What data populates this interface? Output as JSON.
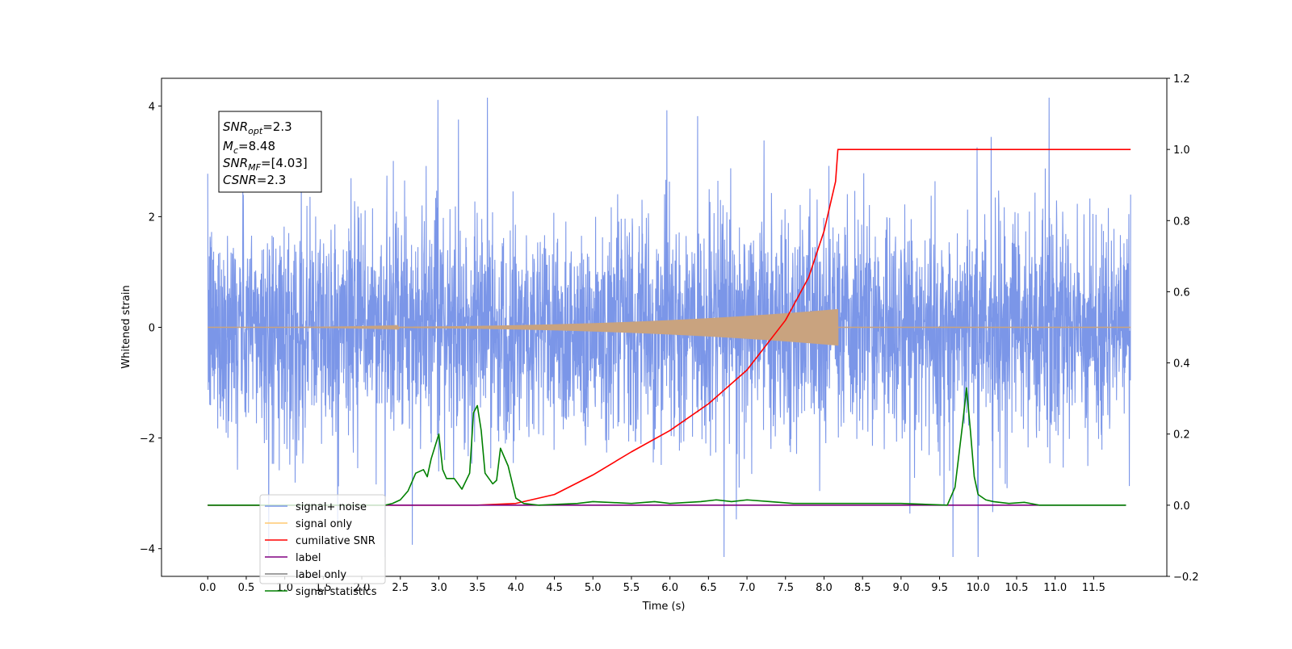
{
  "chart_data": {
    "type": "line",
    "xlabel": "Time (s)",
    "ylabel": "Whitened strain",
    "xlim": [
      -0.6,
      12.45
    ],
    "ylim_left": [
      -4.5,
      4.5
    ],
    "ylim_right": [
      -0.2,
      1.2
    ],
    "x_ticks": [
      "0.0",
      "0.5",
      "1.0",
      "1.5",
      "2.0",
      "2.5",
      "3.0",
      "3.5",
      "4.0",
      "4.5",
      "5.0",
      "5.5",
      "6.0",
      "6.5",
      "7.0",
      "7.5",
      "8.0",
      "8.5",
      "9.0",
      "9.5",
      "10.0",
      "10.5",
      "11.0",
      "11.5"
    ],
    "y_ticks_left": [
      "−4",
      "−2",
      "0",
      "2",
      "4"
    ],
    "y_ticks_right": [
      "−0.2",
      "0.0",
      "0.2",
      "0.4",
      "0.6",
      "0.8",
      "1.0",
      "1.2"
    ],
    "annotation": {
      "snr_opt": {
        "base": "SNR",
        "sub": "opt",
        "value": "=2.3"
      },
      "mc": {
        "base": "M",
        "sub": "c",
        "value": "=8.48"
      },
      "snr_mf": {
        "base": "SNR",
        "sub": "MF",
        "value": "=[4.03]"
      },
      "csnr": {
        "base": "CSNR",
        "sub": "",
        "value": "=2.3"
      }
    },
    "legend": {
      "placement": "lower-left",
      "entries": [
        {
          "label": "signal+ noise",
          "color": "#7b96e8"
        },
        {
          "label": "signal only",
          "color": "#ffc870"
        },
        {
          "label": "cumilative SNR",
          "color": "#ff0000"
        },
        {
          "label": "label",
          "color": "#800080"
        },
        {
          "label": "label only",
          "color": "#808080"
        },
        {
          "label": "signal statistics",
          "color": "#008000"
        }
      ]
    },
    "series": [
      {
        "name": "signal+ noise",
        "axis": "left",
        "kind": "noise",
        "x_range": [
          0.0,
          11.98
        ],
        "sigma": 1.0,
        "color": "#7b96e8"
      },
      {
        "name": "signal only",
        "axis": "left",
        "kind": "chirp",
        "x_range": [
          0.0,
          8.18
        ],
        "peak_amplitude": 0.33,
        "color": "#c9a37f"
      },
      {
        "name": "cumilative SNR",
        "axis": "right",
        "x": [
          0.0,
          3.5,
          4.0,
          4.5,
          5.0,
          5.5,
          6.0,
          6.5,
          7.0,
          7.5,
          7.8,
          8.0,
          8.15,
          8.18,
          11.98
        ],
        "y": [
          0.0,
          0.0,
          0.005,
          0.03,
          0.085,
          0.15,
          0.21,
          0.285,
          0.38,
          0.52,
          0.64,
          0.77,
          0.91,
          1.0,
          1.0
        ],
        "color": "#ff0000"
      },
      {
        "name": "label",
        "axis": "right",
        "x": [
          0.0,
          11.92
        ],
        "y": [
          0.0,
          0.0
        ],
        "color": "#800080"
      },
      {
        "name": "signal statistics",
        "axis": "right",
        "x": [
          0.0,
          2.3,
          2.4,
          2.5,
          2.6,
          2.7,
          2.8,
          2.85,
          2.9,
          3.0,
          3.05,
          3.1,
          3.2,
          3.3,
          3.4,
          3.45,
          3.5,
          3.55,
          3.6,
          3.7,
          3.75,
          3.8,
          3.9,
          4.0,
          4.1,
          4.3,
          4.8,
          5.0,
          5.5,
          5.8,
          6.0,
          6.4,
          6.6,
          6.8,
          7.0,
          7.3,
          7.6,
          8.0,
          9.0,
          9.6,
          9.7,
          9.8,
          9.85,
          9.9,
          9.95,
          10.0,
          10.1,
          10.2,
          10.4,
          10.6,
          10.8,
          11.92
        ],
        "y": [
          0.0,
          0.0,
          0.005,
          0.015,
          0.04,
          0.09,
          0.1,
          0.08,
          0.13,
          0.2,
          0.1,
          0.075,
          0.075,
          0.045,
          0.09,
          0.26,
          0.28,
          0.21,
          0.09,
          0.06,
          0.07,
          0.16,
          0.11,
          0.02,
          0.005,
          0.0,
          0.005,
          0.01,
          0.005,
          0.01,
          0.005,
          0.01,
          0.015,
          0.01,
          0.015,
          0.01,
          0.005,
          0.005,
          0.005,
          0.0,
          0.05,
          0.23,
          0.33,
          0.21,
          0.08,
          0.03,
          0.015,
          0.01,
          0.005,
          0.008,
          0.0,
          0.0
        ],
        "color": "#008000"
      }
    ]
  }
}
